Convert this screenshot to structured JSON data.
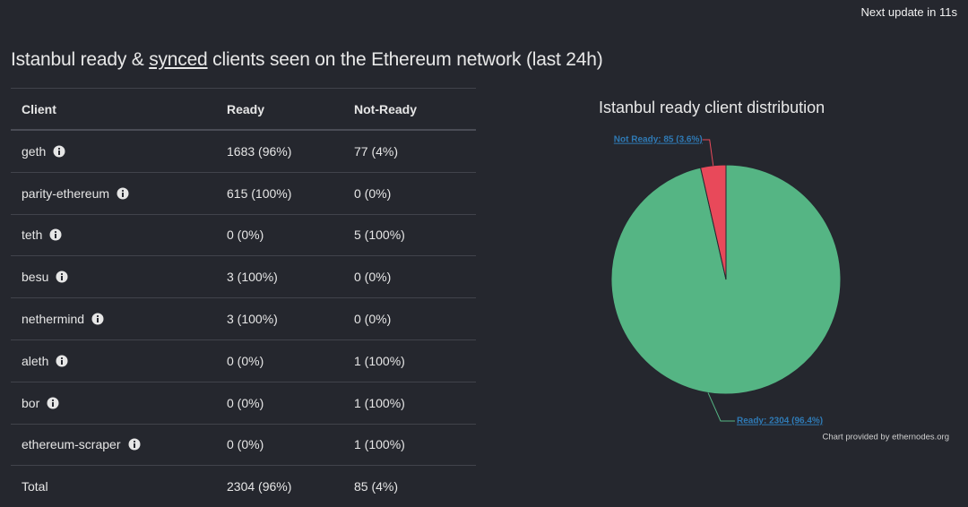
{
  "header": {
    "update": "Next update in 11s",
    "title_before": "Istanbul ready & ",
    "title_link": "synced",
    "title_after": " clients seen on the Ethereum network (last 24h)"
  },
  "table": {
    "columns": [
      "Client",
      "Ready",
      "Not-Ready"
    ],
    "rows": [
      [
        "geth",
        "1683 (96%)",
        "77 (4%)"
      ],
      [
        "parity-ethereum",
        "615 (100%)",
        "0 (0%)"
      ],
      [
        "teth",
        "0 (0%)",
        "5 (100%)"
      ],
      [
        "besu",
        "3 (100%)",
        "0 (0%)"
      ],
      [
        "nethermind",
        "3 (100%)",
        "0 (0%)"
      ],
      [
        "aleth",
        "0 (0%)",
        "1 (100%)"
      ],
      [
        "bor",
        "0 (0%)",
        "1 (100%)"
      ],
      [
        "ethereum-scraper",
        "0 (0%)",
        "1 (100%)"
      ]
    ],
    "total": [
      "Total",
      "2304 (96%)",
      "85 (4%)"
    ]
  },
  "chart_data": {
    "type": "pie",
    "title": "Istanbul ready client distribution",
    "categories": [
      "Ready",
      "Not Ready"
    ],
    "values": [
      2304,
      85
    ],
    "value_labels": [
      "Ready: 2304 (96.4%)",
      "Not Ready: 85 (3.6%)"
    ],
    "colors": [
      "#55b584",
      "#e8495a"
    ],
    "credit": "Chart provided by ethernodes.org"
  }
}
